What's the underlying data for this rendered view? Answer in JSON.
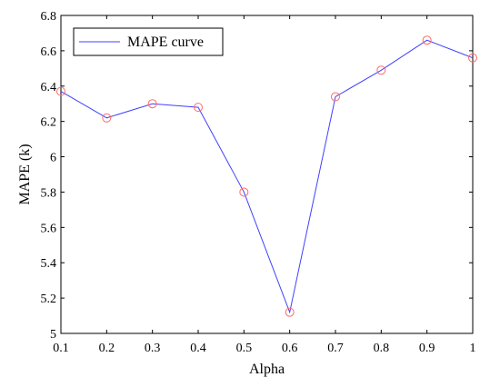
{
  "chart_data": {
    "type": "line",
    "x": [
      0.1,
      0.2,
      0.3,
      0.4,
      0.5,
      0.6,
      0.7,
      0.8,
      0.9,
      1.0
    ],
    "series": [
      {
        "name": "MAPE curve",
        "values": [
          6.37,
          6.22,
          6.3,
          6.28,
          5.8,
          5.12,
          6.34,
          6.49,
          6.66,
          6.56
        ],
        "line_color": "#4040ff",
        "marker": "circle",
        "marker_color": "#ff6a6a"
      }
    ],
    "title": "",
    "xlabel": "Alpha",
    "ylabel": "MAPE (k)",
    "xlim": [
      0.1,
      1.0
    ],
    "ylim": [
      5.0,
      6.8
    ],
    "x_ticks": [
      "0.1",
      "0.2",
      "0.3",
      "0.4",
      "0.5",
      "0.6",
      "0.7",
      "0.8",
      "0.9",
      "1"
    ],
    "y_ticks": [
      "5",
      "5.2",
      "5.4",
      "5.6",
      "5.8",
      "6",
      "6.2",
      "6.4",
      "6.6",
      "6.8"
    ],
    "grid": false,
    "legend_position": "top-left"
  }
}
